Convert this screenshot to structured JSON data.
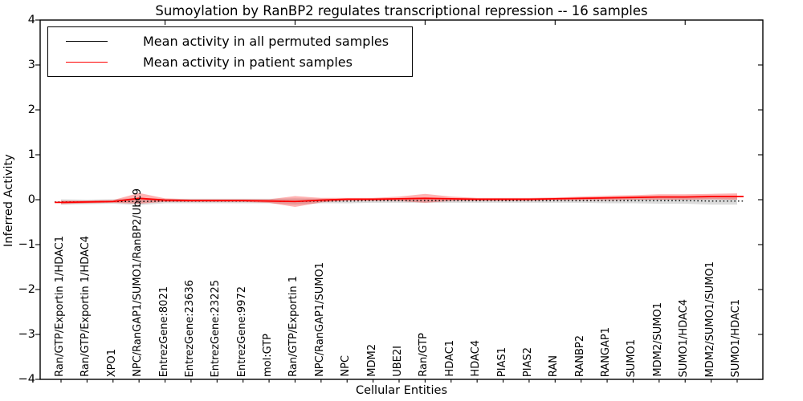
{
  "figure": {
    "title": "Sumoylation by RanBP2 regulates transcriptional repression -- 16 samples",
    "xlabel": "Cellular Entities",
    "ylabel": "Inferred Activity"
  },
  "legend": {
    "entries": [
      {
        "label": "Mean activity in all permuted samples",
        "color": "#000000"
      },
      {
        "label": "Mean activity in patient samples",
        "color": "#ff0000"
      }
    ]
  },
  "chart_data": {
    "type": "line",
    "title": "Sumoylation by RanBP2 regulates transcriptional repression -- 16 samples",
    "xlabel": "Cellular Entities",
    "ylabel": "Inferred Activity",
    "ylim": [
      -4,
      4
    ],
    "yticks": [
      4,
      3,
      2,
      1,
      0,
      -1,
      -2,
      -3,
      -4
    ],
    "grid": false,
    "legend_position": "upper left",
    "categories": [
      "Ran/GTP/Exportin 1/HDAC1",
      "Ran/GTP/Exportin 1/HDAC4",
      "XPO1",
      "NPC/RanGAP1/SUMO1/RanBP2/Ubc9",
      "EntrezGene:8021",
      "EntrezGene:23636",
      "EntrezGene:23225",
      "EntrezGene:9972",
      "mol:GTP",
      "Ran/GTP/Exportin 1",
      "NPC/RanGAP1/SUMO1",
      "NPC",
      "MDM2",
      "UBE2I",
      "Ran/GTP",
      "HDAC1",
      "HDAC4",
      "PIAS1",
      "PIAS2",
      "RAN",
      "RANBP2",
      "RANGAP1",
      "SUMO1",
      "MDM2/SUMO1",
      "SUMO1/HDAC4",
      "MDM2/SUMO1/SUMO1",
      "SUMO1/HDAC1"
    ],
    "series": [
      {
        "name": "Mean activity in all permuted samples",
        "color": "#000000",
        "line_style": "dotted",
        "values": [
          -0.05,
          -0.05,
          -0.04,
          -0.04,
          -0.03,
          -0.03,
          -0.03,
          -0.03,
          -0.03,
          -0.04,
          -0.03,
          -0.03,
          -0.02,
          -0.02,
          -0.02,
          -0.02,
          -0.02,
          -0.02,
          -0.02,
          -0.02,
          -0.02,
          -0.02,
          -0.02,
          -0.02,
          -0.02,
          -0.03,
          -0.03
        ],
        "band": [
          0.06,
          0.05,
          0.05,
          0.08,
          0.05,
          0.05,
          0.05,
          0.05,
          0.05,
          0.07,
          0.05,
          0.05,
          0.05,
          0.05,
          0.05,
          0.05,
          0.05,
          0.05,
          0.05,
          0.05,
          0.05,
          0.06,
          0.06,
          0.07,
          0.07,
          0.08,
          0.08
        ],
        "band_color": "rgba(130,130,130,0.28)"
      },
      {
        "name": "Mean activity in patient samples",
        "color": "#ff0000",
        "line_style": "solid",
        "values": [
          -0.06,
          -0.05,
          -0.04,
          0.03,
          -0.01,
          -0.02,
          -0.02,
          -0.02,
          -0.03,
          -0.04,
          -0.01,
          0.01,
          0.01,
          0.02,
          0.03,
          0.02,
          0.01,
          0.01,
          0.01,
          0.02,
          0.03,
          0.04,
          0.05,
          0.06,
          0.06,
          0.07,
          0.07
        ],
        "band": [
          0.04,
          0.03,
          0.03,
          0.12,
          0.04,
          0.03,
          0.03,
          0.03,
          0.04,
          0.12,
          0.05,
          0.03,
          0.03,
          0.05,
          0.1,
          0.05,
          0.03,
          0.03,
          0.03,
          0.03,
          0.04,
          0.05,
          0.05,
          0.06,
          0.06,
          0.06,
          0.07
        ],
        "band_color": "rgba(255,0,0,0.30)"
      }
    ],
    "top_tick_categories": [
      4,
      9,
      14,
      19,
      24
    ]
  }
}
